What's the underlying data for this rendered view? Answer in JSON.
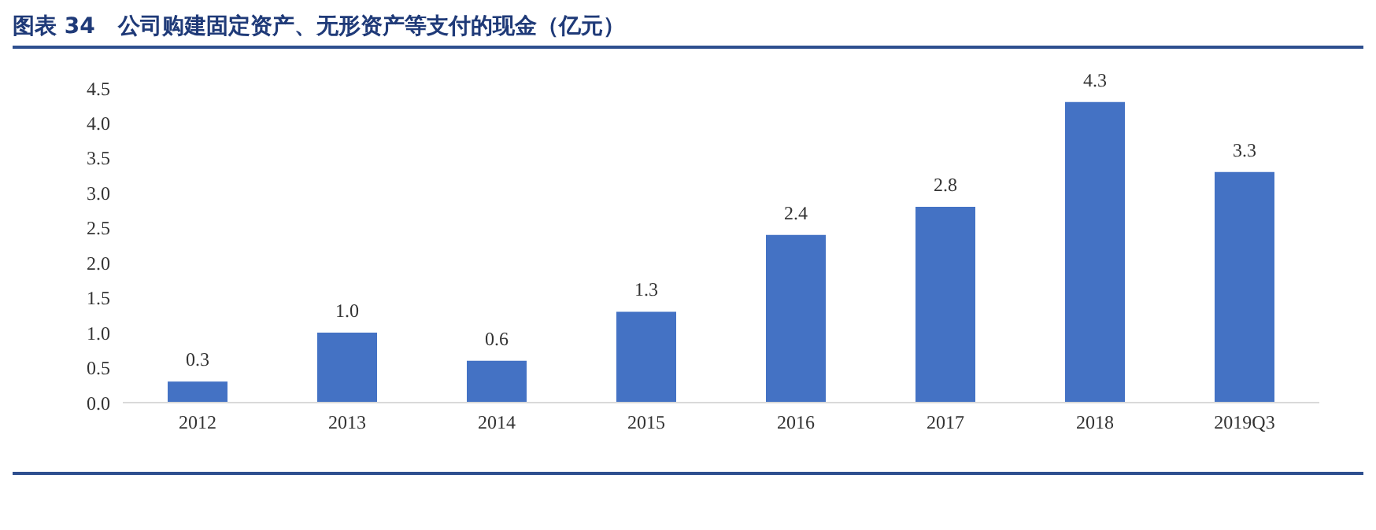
{
  "chart_data": {
    "type": "bar",
    "title": "图表 34   公司购建固定资产、无形资产等支付的现金（亿元）",
    "categories": [
      "2012",
      "2013",
      "2014",
      "2015",
      "2016",
      "2017",
      "2018",
      "2019Q3"
    ],
    "values": [
      0.3,
      1.0,
      0.6,
      1.3,
      2.4,
      2.8,
      4.3,
      3.3
    ],
    "value_labels": [
      "0.3",
      "1.0",
      "0.6",
      "1.3",
      "2.4",
      "2.8",
      "4.3",
      "3.3"
    ],
    "color": "#4472c4",
    "ylim": [
      0,
      4.5
    ],
    "yticks": [
      {
        "value": 0,
        "label": "0.0"
      },
      {
        "value": 0.5,
        "label": "0.5"
      },
      {
        "value": 1,
        "label": "1.0"
      },
      {
        "value": 1.5,
        "label": "1.5"
      },
      {
        "value": 2,
        "label": "2.0"
      },
      {
        "value": 2.5,
        "label": "2.5"
      },
      {
        "value": 3,
        "label": "3.0"
      },
      {
        "value": 3.5,
        "label": "3.5"
      },
      {
        "value": 4,
        "label": "4.0"
      },
      {
        "value": 4.5,
        "label": "4.5"
      }
    ],
    "grid": false,
    "legend": false
  }
}
